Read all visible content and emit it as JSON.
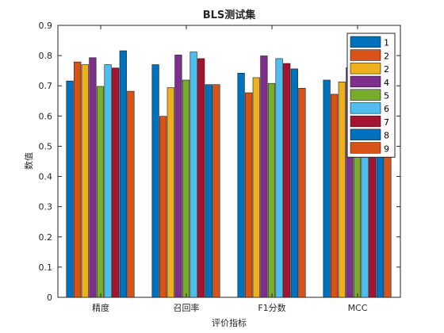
{
  "chart_data": {
    "type": "bar",
    "title": "BLS测试集",
    "xlabel": "评价指标",
    "ylabel": "数值",
    "ylim": [
      0,
      0.9
    ],
    "yticks": [
      "0",
      "0.1",
      "0.2",
      "0.3",
      "0.4",
      "0.5",
      "0.6",
      "0.7",
      "0.8",
      "0.9"
    ],
    "categories": [
      "精度",
      "召回率",
      "F1分数",
      "MCC"
    ],
    "grid": false,
    "legend_position": "top-right",
    "series": [
      {
        "name": "1",
        "color": "#0072BD",
        "values": [
          0.716,
          0.77,
          0.742,
          0.719
        ]
      },
      {
        "name": "2",
        "color": "#D95319",
        "values": [
          0.779,
          0.599,
          0.677,
          0.672
        ]
      },
      {
        "name": "2",
        "color": "#EDB120",
        "values": [
          0.77,
          0.694,
          0.727,
          0.713
        ]
      },
      {
        "name": "4",
        "color": "#7E2F8E",
        "values": [
          0.793,
          0.802,
          0.799,
          0.76
        ]
      },
      {
        "name": "5",
        "color": "#77AC30",
        "values": [
          0.698,
          0.719,
          0.708,
          0.7
        ]
      },
      {
        "name": "6",
        "color": "#4DBEEE",
        "values": [
          0.77,
          0.812,
          0.79,
          0.745
        ]
      },
      {
        "name": "7",
        "color": "#A2142F",
        "values": [
          0.759,
          0.79,
          0.774,
          0.722
        ]
      },
      {
        "name": "8",
        "color": "#0072BD",
        "values": [
          0.816,
          0.704,
          0.756,
          0.742
        ]
      },
      {
        "name": "9",
        "color": "#D95319",
        "values": [
          0.682,
          0.704,
          0.692,
          0.62
        ]
      }
    ]
  }
}
